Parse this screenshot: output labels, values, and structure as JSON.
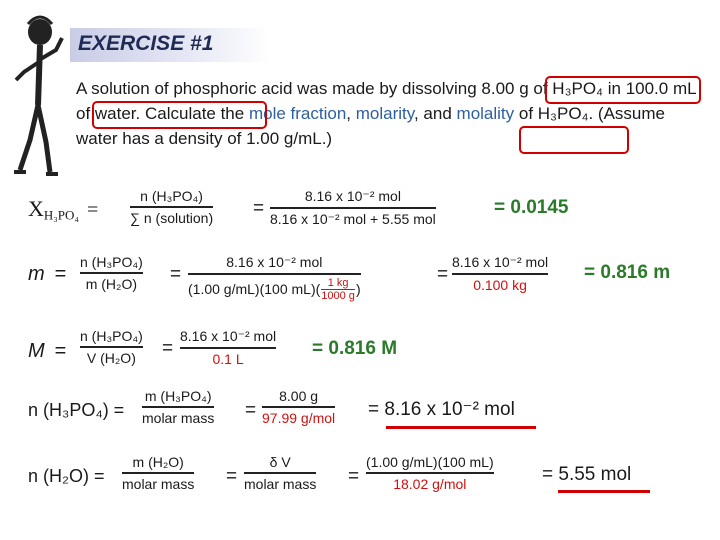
{
  "slide": {
    "title": "EXERCISE #1",
    "problem": {
      "p1": "A solution of phosphoric acid was made by dissolving ",
      "mass": "8.00 g of H₃PO₄",
      "p2": " in ",
      "volume": "100.0 mL of water",
      "p3": ". Calculate the ",
      "k1": "mole fraction",
      "p4": ", ",
      "k2": "molarity",
      "p5": ", and ",
      "k3": "molality",
      "p6": " of H₃PO₄. (Assume water has a density of ",
      "density": "1.00 g/mL.",
      "p7": ")"
    }
  },
  "mole_fraction": {
    "symbol": "X",
    "sub": "H₃PO₄",
    "f1_num": "n (H₃PO₄)",
    "f1_den": "∑ n (solution)",
    "f2_num": "8.16 x 10⁻² mol",
    "f2_den": "8.16 x 10⁻² mol + 5.55 mol",
    "result": "= 0.0145"
  },
  "molality": {
    "symbol": "m",
    "f1_num": "n (H₃PO₄)",
    "f1_den": "m (H₂O)",
    "f2_num": "8.16 x 10⁻² mol",
    "f2_den_a": "(1.00 g/mL)(100 mL)(",
    "conv_num": "1 kg",
    "conv_den": "1000 g",
    "f2_den_b": ")",
    "f3_num": "8.16 x 10⁻² mol",
    "f3_den": "0.100 kg",
    "result": "= 0.816 m"
  },
  "molarity": {
    "symbol": "M",
    "f1_num": "n (H₃PO₄)",
    "f1_den": "V (H₂O)",
    "f2_num": "8.16 x 10⁻² mol",
    "f2_den": "0.1 L",
    "result": "= 0.816 M"
  },
  "n_acid": {
    "lhs": "n (H₃PO₄) =",
    "f1_num": "m (H₃PO₄)",
    "f1_den": "molar mass",
    "f2_num": "8.00 g",
    "f2_den": "97.99 g/mol",
    "result": "= 8.16 x 10⁻² mol"
  },
  "n_water": {
    "lhs": "n (H₂O) =",
    "f1_num": "m (H₂O)",
    "f1_den": "molar mass",
    "f2_num": "δ V",
    "f2_den": "molar mass",
    "f3_num": "(1.00 g/mL)(100 mL)",
    "f3_den": "18.02 g/mol",
    "result": "= 5.55 mol"
  },
  "equals": "=",
  "colors": {
    "accent_red": "#d00000",
    "result_green": "#2a7a2a",
    "keyword_blue": "#2e5fa0",
    "title_navy": "#1f2a55"
  }
}
